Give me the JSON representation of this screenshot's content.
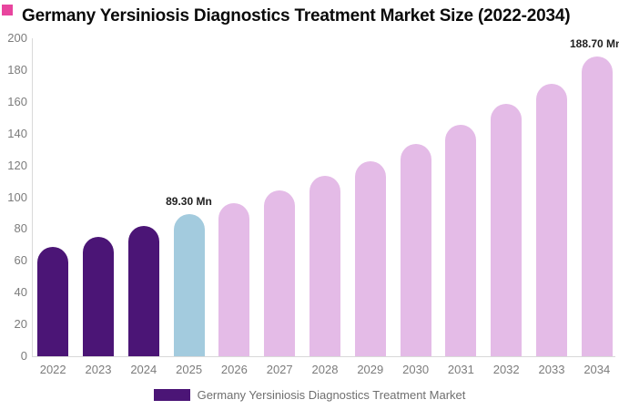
{
  "accent_square_color": "#e8459e",
  "chart_data": {
    "type": "bar",
    "title": "Germany Yersiniosis Diagnostics Treatment Market Size (2022-2034)",
    "categories": [
      "2022",
      "2023",
      "2024",
      "2025",
      "2026",
      "2027",
      "2028",
      "2029",
      "2030",
      "2031",
      "2032",
      "2033",
      "2034"
    ],
    "values": [
      68.5,
      75.0,
      82.0,
      89.3,
      96.0,
      104.5,
      113.5,
      122.5,
      133.5,
      145.5,
      158.5,
      171.5,
      188.7
    ],
    "unit": "Mn",
    "bar_colors": [
      "#4b1576",
      "#4b1576",
      "#4b1576",
      "#a3cbde",
      "#e4bbe7",
      "#e4bbe7",
      "#e4bbe7",
      "#e4bbe7",
      "#e4bbe7",
      "#e4bbe7",
      "#e4bbe7",
      "#e4bbe7",
      "#e4bbe7"
    ],
    "annotations": [
      {
        "category": "2025",
        "label": "89.30 Mn"
      },
      {
        "category": "2034",
        "label": "188.70 Mn"
      }
    ],
    "xlabel": "",
    "ylabel": "",
    "ylim": [
      0,
      200
    ],
    "yticks": [
      0,
      20,
      40,
      60,
      80,
      100,
      120,
      140,
      160,
      180,
      200
    ],
    "grid": false,
    "axis_line_color": "#d9d9d9",
    "tick_text_color": "#7c7c7c",
    "legend_position": "bottom",
    "legend": [
      {
        "label": "Germany Yersiniosis Diagnostics Treatment Market",
        "color": "#4b1576"
      }
    ]
  }
}
